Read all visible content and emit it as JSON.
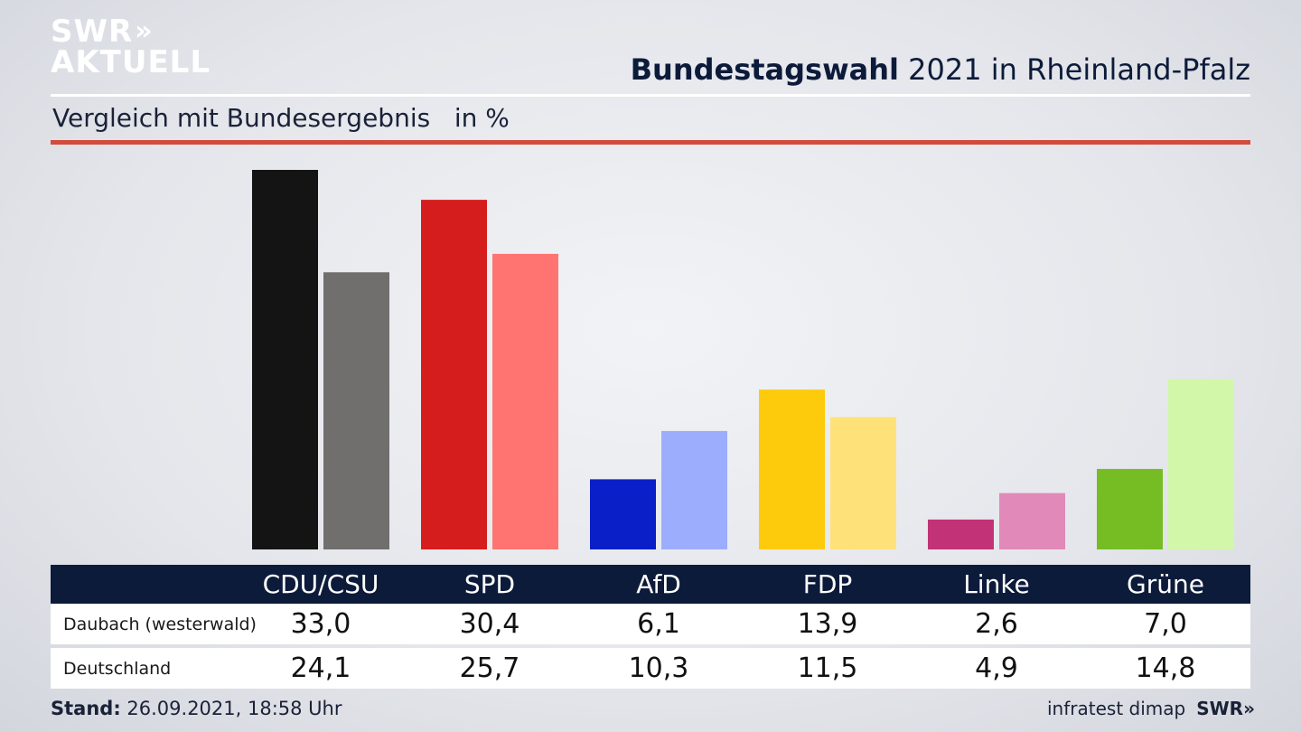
{
  "brand": {
    "line1": "SWR",
    "line2": "AKTUELL",
    "chevrons": "»"
  },
  "title": {
    "bold": "Bundestagswahl",
    "rest": " 2021 in Rheinland-Pfalz"
  },
  "subtitle": "Vergleich mit Bundesergebnis   in %",
  "colors": {
    "accent_rule": "#d24b3c",
    "header_bg": "#0d1b3a"
  },
  "chart_data": {
    "type": "bar",
    "categories": [
      "CDU/CSU",
      "SPD",
      "AfD",
      "FDP",
      "Linke",
      "Grüne"
    ],
    "series": [
      {
        "name": "Daubach (westerwald)",
        "values": [
          33.0,
          30.4,
          6.1,
          13.9,
          2.6,
          7.0
        ],
        "colors": [
          "#141414",
          "#d61d1d",
          "#0a1fc8",
          "#fdcb0b",
          "#c13376",
          "#75bd22"
        ]
      },
      {
        "name": "Deutschland",
        "values": [
          24.1,
          25.7,
          10.3,
          11.5,
          4.9,
          14.8
        ],
        "colors": [
          "#706f6d",
          "#ff7470",
          "#9cadfd",
          "#fee279",
          "#e189b8",
          "#d2f7a8"
        ]
      }
    ],
    "ylim": [
      0,
      33.0
    ]
  },
  "table": {
    "rows": [
      {
        "label": "Daubach (westerwald)",
        "values": [
          "33,0",
          "30,4",
          "6,1",
          "13,9",
          "2,6",
          "7,0"
        ]
      },
      {
        "label": "Deutschland",
        "values": [
          "24,1",
          "25,7",
          "10,3",
          "11,5",
          "4,9",
          "14,8"
        ]
      }
    ]
  },
  "footer": {
    "stand_label": "Stand:",
    "stand_value": " 26.09.2021, 18:58 Uhr",
    "source": "infratest dimap",
    "brand": "SWR",
    "brand_chevrons": "»"
  }
}
